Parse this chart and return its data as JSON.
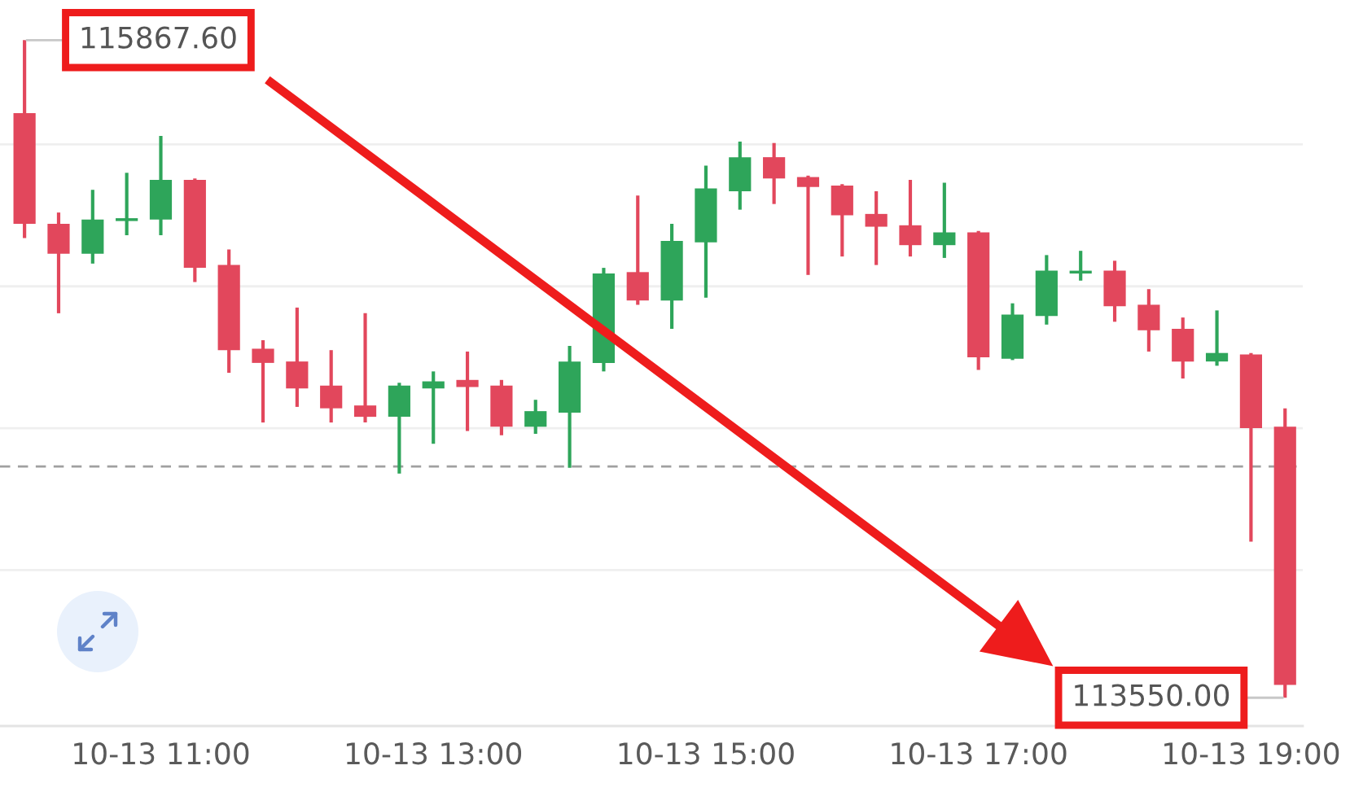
{
  "chart_data": {
    "type": "candlestick",
    "categories": [
      null,
      null,
      null,
      null,
      "10-13 11:00",
      null,
      null,
      null,
      null,
      null,
      null,
      null,
      "10-13 13:00",
      null,
      null,
      null,
      null,
      null,
      null,
      null,
      "10-13 15:00",
      null,
      null,
      null,
      null,
      null,
      null,
      null,
      "10-13 17:00",
      null,
      null,
      null,
      null,
      null,
      null,
      null,
      "10-13 19:00",
      null
    ],
    "ohlc": [
      [
        115610,
        115867.6,
        115170,
        115220
      ],
      [
        115220,
        115260,
        114905,
        115115
      ],
      [
        115115,
        115340,
        115080,
        115235
      ],
      [
        115230,
        115400,
        115180,
        115240
      ],
      [
        115235,
        115530,
        115180,
        115375
      ],
      [
        115375,
        115380,
        115015,
        115065
      ],
      [
        115075,
        115130,
        114695,
        114775
      ],
      [
        114780,
        114810,
        114520,
        114730
      ],
      [
        114735,
        114925,
        114575,
        114640
      ],
      [
        114650,
        114775,
        114520,
        114570
      ],
      [
        114580,
        114905,
        114520,
        114540
      ],
      [
        114540,
        114660,
        114340,
        114650
      ],
      [
        114640,
        114700,
        114445,
        114665
      ],
      [
        114670,
        114770,
        114490,
        114645
      ],
      [
        114650,
        114670,
        114475,
        114505
      ],
      [
        114505,
        114600,
        114480,
        114560
      ],
      [
        114555,
        114790,
        114360,
        114735
      ],
      [
        114730,
        115065,
        114700,
        115045
      ],
      [
        115050,
        115320,
        114935,
        114950
      ],
      [
        114950,
        115220,
        114850,
        115160
      ],
      [
        115155,
        115425,
        114960,
        115345
      ],
      [
        115335,
        115510,
        115270,
        115455
      ],
      [
        115455,
        115505,
        115290,
        115380
      ],
      [
        115385,
        115390,
        115040,
        115350
      ],
      [
        115355,
        115360,
        115105,
        115250
      ],
      [
        115255,
        115335,
        115075,
        115210
      ],
      [
        115215,
        115375,
        115105,
        115145
      ],
      [
        115145,
        115365,
        115100,
        115190
      ],
      [
        115190,
        115195,
        114705,
        114750
      ],
      [
        114745,
        114940,
        114740,
        114900
      ],
      [
        114895,
        115110,
        114865,
        115055
      ],
      [
        115045,
        115125,
        115020,
        115055
      ],
      [
        115055,
        115090,
        114875,
        114930
      ],
      [
        114935,
        114990,
        114770,
        114845
      ],
      [
        114850,
        114890,
        114675,
        114735
      ],
      [
        114735,
        114915,
        114720,
        114765
      ],
      [
        114760,
        114765,
        114100,
        114500
      ],
      [
        114505,
        114570,
        113550.0,
        113595
      ]
    ],
    "colors": [
      "#e2475c",
      "#e2475c",
      "#2ea55a",
      "#2ea55a",
      "#2ea55a",
      "#e2475c",
      "#e2475c",
      "#e2475c",
      "#e2475c",
      "#e2475c",
      "#e2475c",
      "#2ea55a",
      "#2ea55a",
      "#e2475c",
      "#e2475c",
      "#2ea55a",
      "#2ea55a",
      "#2ea55a",
      "#e2475c",
      "#2ea55a",
      "#2ea55a",
      "#2ea55a",
      "#e2475c",
      "#e2475c",
      "#e2475c",
      "#e2475c",
      "#e2475c",
      "#2ea55a",
      "#e2475c",
      "#2ea55a",
      "#2ea55a",
      "#2ea55a",
      "#e2475c",
      "#e2475c",
      "#e2475c",
      "#2ea55a",
      "#e2475c",
      "#e2475c"
    ],
    "yticks": [
      {
        "value": 114000,
        "label": null
      },
      {
        "value": 114500,
        "label": null
      },
      {
        "value": 115000,
        "label": null
      },
      {
        "value": 115500,
        "label": null
      }
    ],
    "grid": "y",
    "tick_labels": "x",
    "ref_lines": [
      {
        "axis": "y",
        "value": 114365,
        "color": "#a0a0a0",
        "line_style": "dashed"
      }
    ],
    "annotations": [
      "115867.60",
      "113550.00"
    ]
  }
}
